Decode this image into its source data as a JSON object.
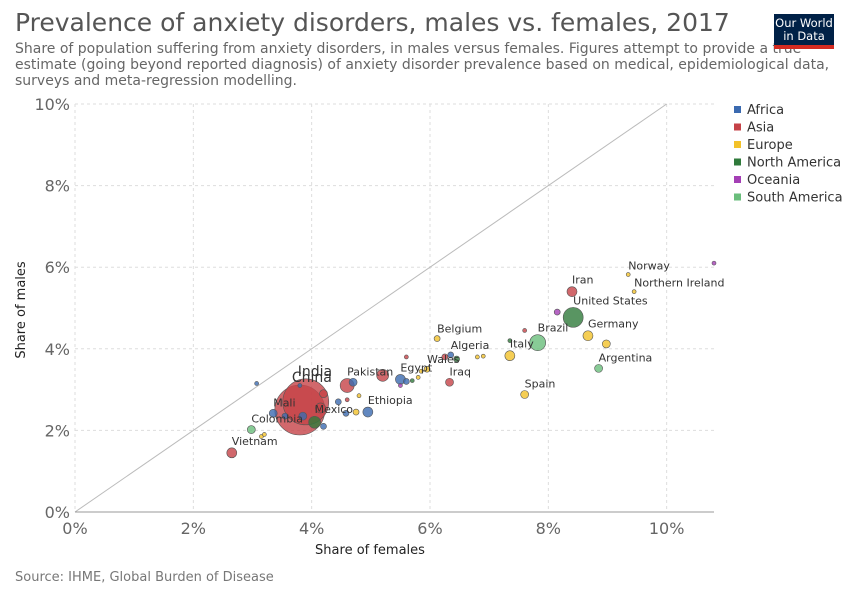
{
  "header": {
    "title": "Prevalence of anxiety disorders, males vs. females, 2017",
    "subtitle": "Share of population suffering from anxiety disorders, in males versus females. Figures attempt to provide a true estimate (going beyond reported diagnosis) of anxiety disorder prevalence based on medical, epidemiological data, surveys and meta-regression modelling.",
    "logo_line1": "Our World",
    "logo_line2": "in Data"
  },
  "footer": {
    "source": "Source: IHME, Global Burden of Disease"
  },
  "colors": {
    "Africa": "#3b6ab0",
    "Asia": "#c54247",
    "Europe": "#f3c22a",
    "North America": "#2f7a3b",
    "Oceania": "#a43fb5",
    "South America": "#6abe7c"
  },
  "chart_data": {
    "type": "scatter",
    "xlabel": "Share of females",
    "ylabel": "Share of males",
    "xlim": [
      0,
      10.8
    ],
    "ylim": [
      0,
      10
    ],
    "xticks": [
      "0%",
      "2%",
      "4%",
      "6%",
      "8%",
      "10%"
    ],
    "yticks": [
      "0%",
      "2%",
      "4%",
      "6%",
      "8%",
      "10%"
    ],
    "grid": true,
    "reference_line": "x = y",
    "legend_position": "right",
    "legend": [
      "Africa",
      "Asia",
      "Europe",
      "North America",
      "Oceania",
      "South America"
    ],
    "points": [
      {
        "label": "China",
        "region": "Asia",
        "x": 3.8,
        "y": 2.5,
        "size": 25
      },
      {
        "label": "India",
        "region": "Asia",
        "x": 3.9,
        "y": 2.7,
        "size": 23
      },
      {
        "label": "Vietnam",
        "region": "Asia",
        "x": 2.65,
        "y": 1.45,
        "size": 5
      },
      {
        "label": "Colombia",
        "region": "South America",
        "x": 2.98,
        "y": 2.02,
        "size": 4
      },
      {
        "label": "Mali",
        "region": "Africa",
        "x": 3.35,
        "y": 2.42,
        "size": 4
      },
      {
        "label": "Mexico",
        "region": "North America",
        "x": 4.05,
        "y": 2.2,
        "size": 6
      },
      {
        "label": "Ethiopia",
        "region": "Africa",
        "x": 4.95,
        "y": 2.45,
        "size": 5
      },
      {
        "label": "Pakistan",
        "region": "Asia",
        "x": 4.6,
        "y": 3.1,
        "size": 7
      },
      {
        "label": "Egypt",
        "region": "Africa",
        "x": 5.5,
        "y": 3.25,
        "size": 5
      },
      {
        "label": "Wales",
        "region": "Europe",
        "x": 5.95,
        "y": 3.5,
        "size": 3
      },
      {
        "label": "Algeria",
        "region": "Africa",
        "x": 6.35,
        "y": 3.85,
        "size": 3
      },
      {
        "label": "Belgium",
        "region": "Europe",
        "x": 6.12,
        "y": 4.25,
        "size": 3
      },
      {
        "label": "Iraq",
        "region": "Asia",
        "x": 6.33,
        "y": 3.18,
        "size": 4
      },
      {
        "label": "Italy",
        "region": "Europe",
        "x": 7.35,
        "y": 3.83,
        "size": 5
      },
      {
        "label": "Brazil",
        "region": "South America",
        "x": 7.82,
        "y": 4.15,
        "size": 8
      },
      {
        "label": "Spain",
        "region": "Europe",
        "x": 7.6,
        "y": 2.88,
        "size": 4
      },
      {
        "label": "Iran",
        "region": "Asia",
        "x": 8.4,
        "y": 5.4,
        "size": 5
      },
      {
        "label": "United States",
        "region": "North America",
        "x": 8.42,
        "y": 4.77,
        "size": 10
      },
      {
        "label": "Germany",
        "region": "Europe",
        "x": 8.67,
        "y": 4.32,
        "size": 5
      },
      {
        "label": "Argentina",
        "region": "South America",
        "x": 8.85,
        "y": 3.52,
        "size": 4
      },
      {
        "label": "Norway",
        "region": "Europe",
        "x": 9.35,
        "y": 5.82,
        "size": 2
      },
      {
        "label": "Northern Ireland",
        "region": "Europe",
        "x": 9.45,
        "y": 5.4,
        "size": 2
      },
      {
        "label": "",
        "region": "Asia",
        "x": 5.2,
        "y": 3.35,
        "size": 6
      },
      {
        "label": "",
        "region": "Africa",
        "x": 4.7,
        "y": 3.18,
        "size": 4
      },
      {
        "label": "",
        "region": "Asia",
        "x": 4.15,
        "y": 2.55,
        "size": 5
      },
      {
        "label": "",
        "region": "Asia",
        "x": 4.2,
        "y": 2.9,
        "size": 4
      },
      {
        "label": "",
        "region": "Africa",
        "x": 4.45,
        "y": 2.7,
        "size": 3
      },
      {
        "label": "",
        "region": "Africa",
        "x": 4.58,
        "y": 2.42,
        "size": 3
      },
      {
        "label": "",
        "region": "Europe",
        "x": 4.75,
        "y": 2.45,
        "size": 3
      },
      {
        "label": "",
        "region": "Europe",
        "x": 4.8,
        "y": 2.85,
        "size": 2
      },
      {
        "label": "",
        "region": "Asia",
        "x": 4.6,
        "y": 2.75,
        "size": 2
      },
      {
        "label": "",
        "region": "Africa",
        "x": 4.2,
        "y": 2.1,
        "size": 3
      },
      {
        "label": "",
        "region": "Africa",
        "x": 3.85,
        "y": 2.35,
        "size": 4
      },
      {
        "label": "",
        "region": "Africa",
        "x": 3.55,
        "y": 2.35,
        "size": 3
      },
      {
        "label": "",
        "region": "Africa",
        "x": 3.8,
        "y": 3.1,
        "size": 2
      },
      {
        "label": "",
        "region": "Africa",
        "x": 3.07,
        "y": 3.15,
        "size": 2
      },
      {
        "label": "",
        "region": "Europe",
        "x": 3.15,
        "y": 1.85,
        "size": 2
      },
      {
        "label": "",
        "region": "Europe",
        "x": 3.2,
        "y": 1.9,
        "size": 2
      },
      {
        "label": "",
        "region": "Africa",
        "x": 5.6,
        "y": 3.2,
        "size": 3
      },
      {
        "label": "",
        "region": "North America",
        "x": 5.7,
        "y": 3.22,
        "size": 2
      },
      {
        "label": "",
        "region": "Europe",
        "x": 5.8,
        "y": 3.3,
        "size": 2
      },
      {
        "label": "",
        "region": "Europe",
        "x": 5.85,
        "y": 3.45,
        "size": 2
      },
      {
        "label": "",
        "region": "Asia",
        "x": 5.6,
        "y": 3.8,
        "size": 2
      },
      {
        "label": "",
        "region": "Asia",
        "x": 6.25,
        "y": 3.8,
        "size": 3
      },
      {
        "label": "",
        "region": "North America",
        "x": 6.45,
        "y": 3.75,
        "size": 3
      },
      {
        "label": "",
        "region": "Europe",
        "x": 6.8,
        "y": 3.8,
        "size": 2
      },
      {
        "label": "",
        "region": "Europe",
        "x": 6.9,
        "y": 3.82,
        "size": 2
      },
      {
        "label": "",
        "region": "Asia",
        "x": 7.6,
        "y": 4.45,
        "size": 2
      },
      {
        "label": "",
        "region": "North America",
        "x": 7.35,
        "y": 4.2,
        "size": 2
      },
      {
        "label": "",
        "region": "Oceania",
        "x": 8.15,
        "y": 4.9,
        "size": 3
      },
      {
        "label": "",
        "region": "Europe",
        "x": 8.98,
        "y": 4.12,
        "size": 4
      },
      {
        "label": "",
        "region": "Oceania",
        "x": 10.8,
        "y": 6.1,
        "size": 2
      },
      {
        "label": "",
        "region": "Oceania",
        "x": 5.5,
        "y": 3.1,
        "size": 2
      }
    ]
  }
}
